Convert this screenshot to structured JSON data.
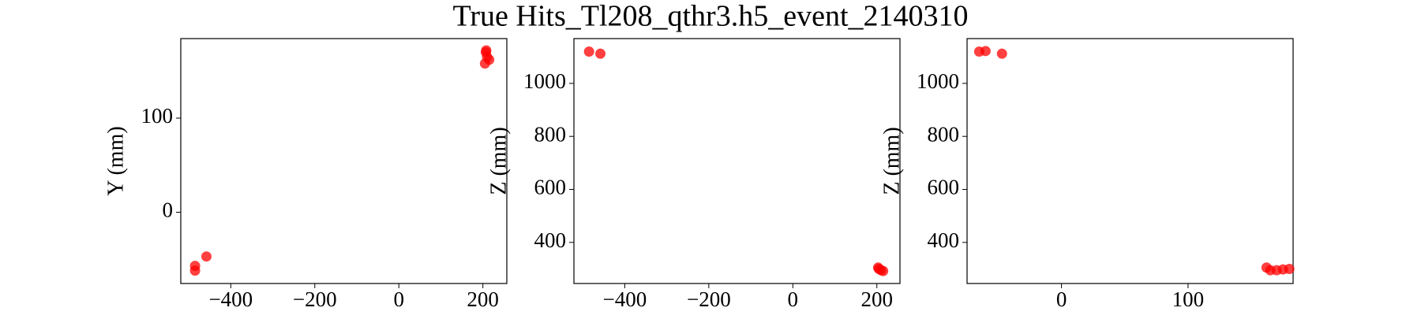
{
  "title": "True Hits_Tl208_qthr3.h5_event_2140310",
  "chart_data": [
    {
      "type": "scatter",
      "ylabel": "Y (mm)",
      "color": "#ff0000",
      "x": [
        -485,
        -485,
        -458,
        207,
        210,
        215,
        205,
        208
      ],
      "y": [
        -57,
        -62,
        -47,
        170,
        165,
        162,
        158,
        172
      ],
      "xlim": [
        -519,
        257
      ],
      "ylim": [
        -75.7,
        184.5
      ],
      "xticks": [
        {
          "value": -400,
          "label": "−400"
        },
        {
          "value": -200,
          "label": "−200"
        },
        0,
        200
      ],
      "yticks": [
        0,
        100
      ]
    },
    {
      "type": "scatter",
      "ylabel": "Z (mm)",
      "color": "#ff0000",
      "x": [
        -485,
        -458,
        205,
        210,
        215,
        203
      ],
      "y": [
        1120,
        1112,
        300,
        295,
        292,
        305
      ],
      "xlim": [
        -521,
        255
      ],
      "ylim": [
        245,
        1169
      ],
      "xticks": [
        {
          "value": -400,
          "label": "−400"
        },
        {
          "value": -200,
          "label": "−200"
        },
        0,
        200
      ],
      "yticks": [
        400,
        600,
        800,
        1000
      ]
    },
    {
      "type": "scatter",
      "ylabel": "Z (mm)",
      "color": "#ff0000",
      "x": [
        -65,
        -60,
        -47,
        162,
        165,
        170,
        175,
        180
      ],
      "y": [
        1120,
        1122,
        1112,
        305,
        295,
        295,
        298,
        300
      ],
      "xlim": [
        -74.6,
        183
      ],
      "ylim": [
        245,
        1169
      ],
      "xticks": [
        0,
        100
      ],
      "yticks": [
        400,
        600,
        800,
        1000
      ]
    }
  ]
}
